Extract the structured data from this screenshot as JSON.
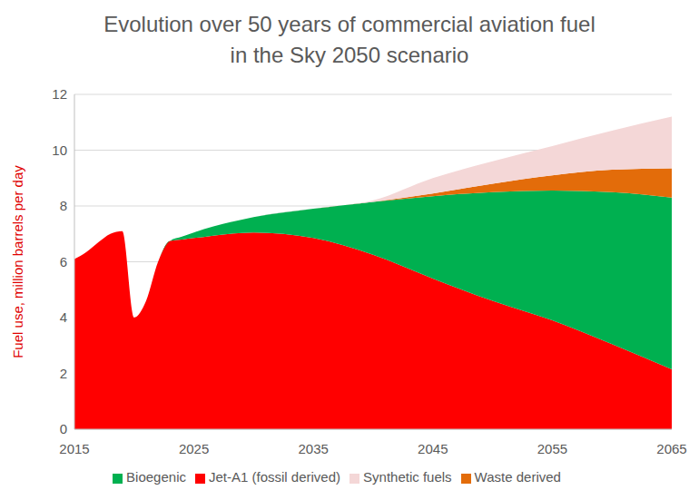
{
  "chart_data": {
    "type": "area",
    "title": "Evolution over 50 years of commercial aviation fuel\nin the Sky 2050 scenario",
    "y_label": "Fuel use, million barrels per day",
    "stacked": true,
    "grid": true,
    "legend": "bottom",
    "x": [
      2015,
      2016,
      2017,
      2018,
      2019,
      2020,
      2021,
      2022,
      2023,
      2024,
      2025,
      2030,
      2035,
      2040,
      2045,
      2050,
      2055,
      2060,
      2065
    ],
    "xlim": [
      2015,
      2065
    ],
    "xticks": [
      2015,
      2025,
      2035,
      2045,
      2055,
      2065
    ],
    "ylim": [
      0,
      12
    ],
    "yticks": [
      0,
      2,
      4,
      6,
      8,
      10,
      12
    ],
    "series": [
      {
        "name": "Jet-A1 (fossil derived)",
        "color": "#ff0000",
        "values": [
          6.1,
          6.35,
          6.7,
          7.0,
          7.1,
          4.0,
          4.6,
          6.0,
          6.75,
          6.8,
          6.85,
          7.05,
          6.85,
          6.25,
          5.4,
          4.6,
          3.9,
          3.05,
          2.15
        ]
      },
      {
        "name": "Bioegenic",
        "color": "#00b050",
        "values": [
          0,
          0,
          0,
          0,
          0,
          0,
          0,
          0,
          0,
          0.1,
          0.2,
          0.55,
          1.05,
          1.9,
          2.95,
          3.9,
          4.65,
          5.45,
          6.15
        ]
      },
      {
        "name": "Waste derived",
        "color": "#e36c0a",
        "values": [
          0,
          0,
          0,
          0,
          0,
          0,
          0,
          0,
          0,
          0,
          0,
          0,
          0,
          0,
          0.1,
          0.3,
          0.55,
          0.8,
          1.05
        ]
      },
      {
        "name": "Synthetic fuels",
        "color": "#f4d7d7",
        "values": [
          0,
          0,
          0,
          0,
          0,
          0,
          0,
          0,
          0,
          0,
          0,
          0,
          0,
          0.05,
          0.55,
          0.8,
          1.05,
          1.4,
          1.85
        ]
      }
    ]
  }
}
